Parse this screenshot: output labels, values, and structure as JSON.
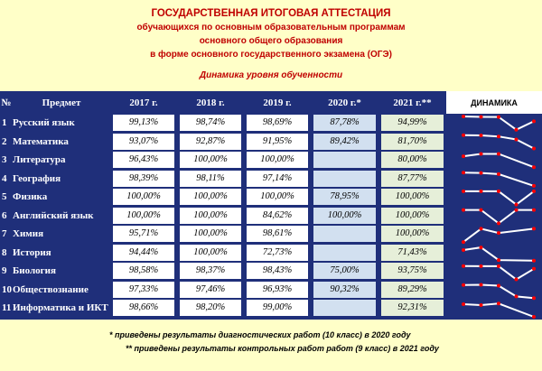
{
  "header": {
    "line1": "ГОСУДАРСТВЕННАЯ ИТОГОВАЯ АТТЕСТАЦИЯ",
    "line2": "обучающихся по основным образовательным программам",
    "line3": "основного общего образования",
    "line4": "в форме основного государственного экзамена (ОГЭ)",
    "subtitle": "Динамика уровня обученности"
  },
  "table": {
    "headers": [
      "№",
      "Предмет",
      "2017 г.",
      "2018 г.",
      "2019 г.",
      "2020 г.*",
      "2021 г.**",
      "ДИНАМИКА"
    ],
    "rows": [
      {
        "num": "1",
        "subject": "Русский язык",
        "v2017": "99,13%",
        "v2018": "98,74%",
        "v2019": "98,69%",
        "v2020": "87,78%",
        "v2021": "94,99%"
      },
      {
        "num": "2",
        "subject": "Математика",
        "v2017": "93,07%",
        "v2018": "92,87%",
        "v2019": "91,95%",
        "v2020": "89,42%",
        "v2021": "81,70%"
      },
      {
        "num": "3",
        "subject": "Литература",
        "v2017": "96,43%",
        "v2018": "100,00%",
        "v2019": "100,00%",
        "v2020": "",
        "v2021": "80,00%"
      },
      {
        "num": "4",
        "subject": "География",
        "v2017": "98,39%",
        "v2018": "98,11%",
        "v2019": "97,14%",
        "v2020": "",
        "v2021": "87,77%"
      },
      {
        "num": "5",
        "subject": "Физика",
        "v2017": "100,00%",
        "v2018": "100,00%",
        "v2019": "100,00%",
        "v2020": "78,95%",
        "v2021": "100,00%"
      },
      {
        "num": "6",
        "subject": "Английский язык",
        "v2017": "100,00%",
        "v2018": "100,00%",
        "v2019": "84,62%",
        "v2020": "100,00%",
        "v2021": "100,00%"
      },
      {
        "num": "7",
        "subject": "Химия",
        "v2017": "95,71%",
        "v2018": "100,00%",
        "v2019": "98,61%",
        "v2020": "",
        "v2021": "100,00%"
      },
      {
        "num": "8",
        "subject": "История",
        "v2017": "94,44%",
        "v2018": "100,00%",
        "v2019": "72,73%",
        "v2020": "",
        "v2021": "71,43%"
      },
      {
        "num": "9",
        "subject": "Биология",
        "v2017": "98,58%",
        "v2018": "98,37%",
        "v2019": "98,43%",
        "v2020": "75,00%",
        "v2021": "93,75%"
      },
      {
        "num": "10",
        "subject": "Обществознание",
        "v2017": "97,33%",
        "v2018": "97,46%",
        "v2019": "96,93%",
        "v2020": "90,32%",
        "v2021": "89,29%"
      },
      {
        "num": "11",
        "subject": "Информатика и ИКТ",
        "v2017": "98,66%",
        "v2018": "98,20%",
        "v2019": "99,00%",
        "v2020": "",
        "v2021": "92,31%"
      }
    ]
  },
  "footnotes": {
    "fn1": "* приведены результаты диагностических работ (10 класс) в 2020 году",
    "fn2": "** приведены результаты контрольных работ работ (9 класс) в 2021 году"
  },
  "colors": {
    "background": "#ffffc8",
    "table_bg": "#1f2f7a",
    "title": "#c00000",
    "cell_2020": "#d2e0f0",
    "cell_2021": "#e6efd9",
    "sparkline_point": "#ff0000"
  }
}
